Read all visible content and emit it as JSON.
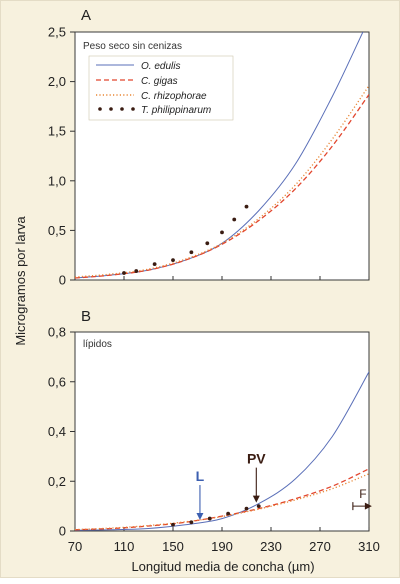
{
  "colors": {
    "background": "#f7f1de",
    "plot_bg": "#ffffff",
    "o_edulis": "#5a6fb8",
    "c_gigas": "#e2462e",
    "c_rhizophorae": "#e88634",
    "t_philippinarum": "#3a1c12",
    "L_marker": "#3c5fb0",
    "PV_marker": "#3a1c12"
  },
  "shared": {
    "ylabel": "Microgramos por larva",
    "xlabel": "Longitud media de concha (µm)",
    "xticks": [
      "70",
      "110",
      "150",
      "190",
      "230",
      "270",
      "310"
    ]
  },
  "legend": {
    "o_edulis": "O. edulis",
    "c_gigas": "C. gigas",
    "c_rhizophorae": "C. rhizophorae",
    "t_philippinarum": "T. philippinarum"
  },
  "chart_data": [
    {
      "panel": "A",
      "type": "line",
      "subtitle": "Peso seco sin cenizas",
      "xlim": [
        70,
        310
      ],
      "ylim": [
        0,
        2.5
      ],
      "yticks": [
        "0",
        "0,5",
        "1,0",
        "1,5",
        "2,0",
        "2,5"
      ],
      "legend_position": "top-left",
      "series": [
        {
          "name": "O. edulis",
          "style": "solid",
          "x": [
            70,
            100,
            130,
            160,
            190,
            220,
            250,
            280,
            305
          ],
          "y": [
            0.02,
            0.05,
            0.1,
            0.2,
            0.37,
            0.7,
            1.17,
            1.85,
            2.5
          ]
        },
        {
          "name": "C. gigas",
          "style": "dashed",
          "x": [
            70,
            100,
            130,
            160,
            190,
            220,
            250,
            280,
            310
          ],
          "y": [
            0.02,
            0.05,
            0.1,
            0.2,
            0.36,
            0.6,
            0.92,
            1.35,
            1.87
          ]
        },
        {
          "name": "C. rhizophorae",
          "style": "dotted",
          "x": [
            70,
            100,
            130,
            160,
            190,
            220,
            250,
            280,
            310
          ],
          "y": [
            0.03,
            0.06,
            0.11,
            0.21,
            0.37,
            0.62,
            0.96,
            1.42,
            1.96
          ]
        },
        {
          "name": "T. philippinarum",
          "style": "points",
          "x": [
            110,
            120,
            135,
            150,
            165,
            178,
            190,
            200,
            210
          ],
          "y": [
            0.07,
            0.09,
            0.16,
            0.2,
            0.28,
            0.37,
            0.48,
            0.61,
            0.74
          ]
        }
      ]
    },
    {
      "panel": "B",
      "type": "line",
      "subtitle": "lípidos",
      "xlim": [
        70,
        310
      ],
      "ylim": [
        0,
        0.8
      ],
      "yticks": [
        "0",
        "0,2",
        "0,4",
        "0,6",
        "0,8"
      ],
      "series": [
        {
          "name": "O. edulis",
          "style": "solid",
          "x": [
            70,
            100,
            130,
            160,
            190,
            220,
            250,
            280,
            310
          ],
          "y": [
            0.003,
            0.005,
            0.01,
            0.025,
            0.05,
            0.11,
            0.21,
            0.38,
            0.64
          ]
        },
        {
          "name": "C. gigas",
          "style": "dashed",
          "x": [
            70,
            100,
            130,
            160,
            190,
            220,
            250,
            280,
            310
          ],
          "y": [
            0.005,
            0.01,
            0.02,
            0.035,
            0.06,
            0.09,
            0.13,
            0.18,
            0.25
          ]
        },
        {
          "name": "C. rhizophorae",
          "style": "dotted",
          "x": [
            70,
            100,
            130,
            160,
            190,
            220,
            250,
            280,
            310
          ],
          "y": [
            0.006,
            0.012,
            0.022,
            0.037,
            0.058,
            0.088,
            0.125,
            0.17,
            0.23
          ]
        },
        {
          "name": "T. philippinarum",
          "style": "points",
          "x": [
            150,
            165,
            180,
            195,
            210,
            220
          ],
          "y": [
            0.025,
            0.035,
            0.05,
            0.07,
            0.09,
            0.1
          ]
        }
      ],
      "annotations": [
        {
          "text": "L",
          "x": 172,
          "y": 0.04,
          "direction": "down"
        },
        {
          "text": "PV",
          "x": 218,
          "y": 0.11,
          "direction": "down"
        },
        {
          "text": "F",
          "x": 305,
          "y": 0.1,
          "direction": "right"
        }
      ]
    }
  ]
}
